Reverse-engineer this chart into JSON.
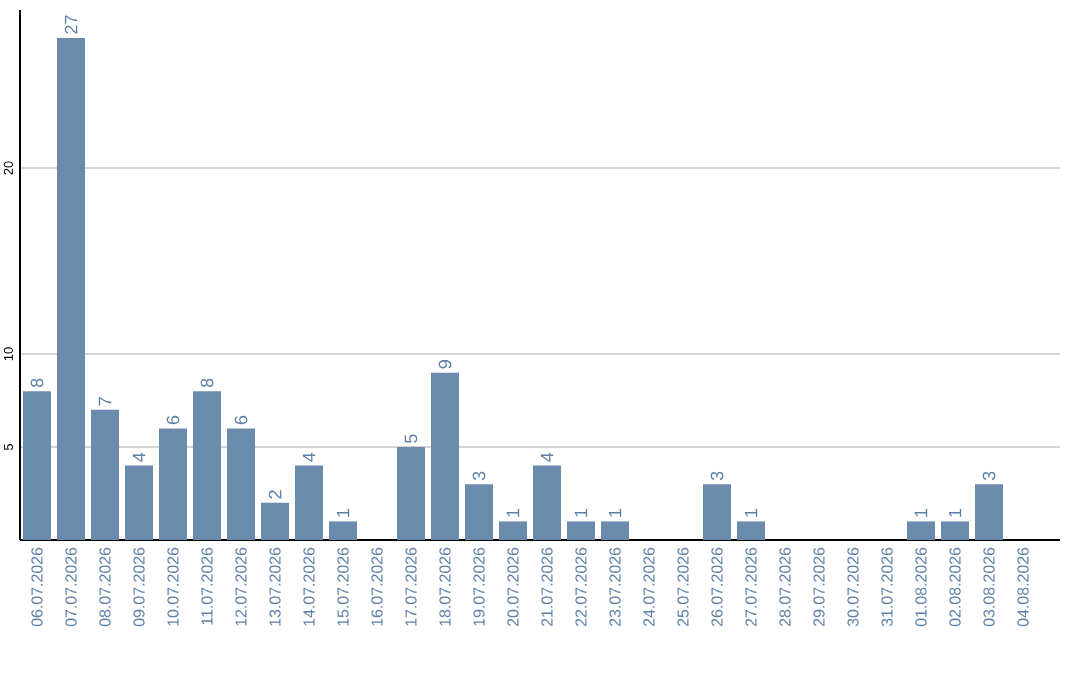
{
  "chart_data": {
    "type": "bar",
    "categories": [
      "06.07.2026",
      "07.07.2026",
      "08.07.2026",
      "09.07.2026",
      "10.07.2026",
      "11.07.2026",
      "12.07.2026",
      "13.07.2026",
      "14.07.2026",
      "15.07.2026",
      "16.07.2026",
      "17.07.2026",
      "18.07.2026",
      "19.07.2026",
      "20.07.2026",
      "21.07.2026",
      "22.07.2026",
      "23.07.2026",
      "24.07.2026",
      "25.07.2026",
      "26.07.2026",
      "27.07.2026",
      "28.07.2026",
      "29.07.2026",
      "30.07.2026",
      "31.07.2026",
      "01.08.2026",
      "02.08.2026",
      "03.08.2026",
      "04.08.2026"
    ],
    "values": [
      8,
      27,
      7,
      4,
      6,
      8,
      6,
      2,
      4,
      1,
      null,
      5,
      9,
      3,
      1,
      4,
      1,
      1,
      null,
      null,
      3,
      1,
      null,
      null,
      null,
      null,
      1,
      1,
      3,
      null
    ],
    "color": "#6a8bab",
    "ylim": [
      0,
      28.5
    ],
    "yticks": [
      5,
      10,
      20
    ],
    "grid": "y",
    "data_labels": true
  }
}
